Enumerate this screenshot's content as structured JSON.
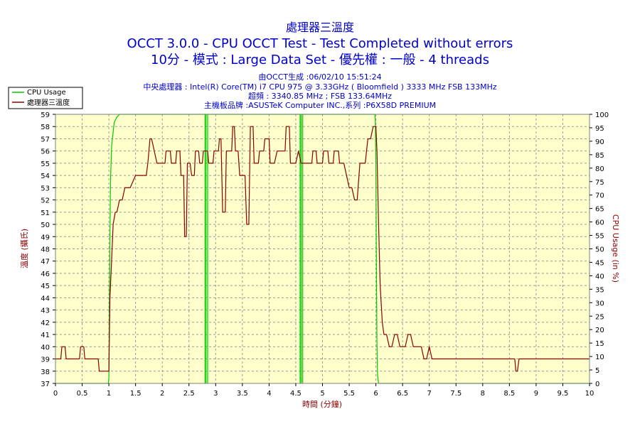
{
  "header": {
    "title": "處理器三溫度",
    "subtitle1": "OCCT 3.0.0 - CPU OCCT Test - Test Completed without errors",
    "subtitle2": "10分 - 模式 : Large Data Set - 優先權 : 一般 - 4 threads",
    "info1": "由OCCT生成 :06/02/10 15:51:24",
    "info2": "中央處理器 : Intel(R) Core(TM) i7 CPU 975 @ 3.33GHz ( Bloomfield ) 3333 MHz FSB 133MHz",
    "info3": "超頻 : 3340.85 MHz ; FSB 133.64MHz",
    "info4": "主機板品牌 :ASUSTeK Computer INC.,系列 :P6X58D PREMIUM"
  },
  "colors": {
    "plot_bg": "#ffffcc",
    "grid": "#999999",
    "temp_line": "#8b0000",
    "cpu_line": "#00cc00",
    "axis_label": "#8b0000",
    "title": "#0000cc"
  },
  "chart_data": {
    "type": "line",
    "xlabel": "時間 (分鐘)",
    "ylabel": "溫度 (攝氏)",
    "y2label": "CPU Usage (in %)",
    "xlim": [
      0,
      10
    ],
    "ylim": [
      37,
      59
    ],
    "y2lim": [
      0,
      100
    ],
    "x_ticks": [
      "0",
      "0.5",
      "1",
      "1.5",
      "2",
      "2.5",
      "3",
      "3.5",
      "4",
      "4.5",
      "5",
      "5.5",
      "6",
      "6.5",
      "7",
      "7.5",
      "8",
      "8.5",
      "9",
      "9.5",
      "10"
    ],
    "y_ticks": [
      "37",
      "38",
      "39",
      "40",
      "41",
      "42",
      "43",
      "44",
      "45",
      "46",
      "47",
      "48",
      "49",
      "50",
      "51",
      "52",
      "53",
      "54",
      "55",
      "56",
      "57",
      "58",
      "59"
    ],
    "y2_ticks": [
      "0",
      "5",
      "10",
      "15",
      "20",
      "25",
      "30",
      "35",
      "40",
      "45",
      "50",
      "55",
      "60",
      "65",
      "70",
      "75",
      "80",
      "85",
      "90",
      "95",
      "100"
    ],
    "grid": true,
    "legend_position": "top-left",
    "series": [
      {
        "name": "CPU Usage",
        "axis": "right",
        "color": "#00cc00",
        "x": [
          0,
          0.99,
          1.0,
          1.01,
          1.02,
          1.03,
          1.05,
          1.1,
          1.15,
          1.2,
          1.3,
          1.5,
          2.8,
          2.8,
          2.8,
          2.82,
          2.82,
          2.82,
          2.85,
          2.85,
          2.85,
          2.87,
          2.87,
          4.58,
          4.58,
          4.58,
          4.6,
          4.6,
          4.6,
          4.63,
          4.63,
          4.63,
          4.65,
          4.65,
          5.98,
          5.99,
          6.0,
          6.01,
          6.02,
          6.03,
          6.05,
          10
        ],
        "y": [
          0,
          0,
          2,
          30,
          55,
          75,
          88,
          97,
          99,
          100,
          100,
          100,
          100,
          0,
          100,
          100,
          0,
          100,
          100,
          0,
          100,
          100,
          100,
          100,
          0,
          100,
          100,
          0,
          100,
          100,
          0,
          100,
          100,
          100,
          100,
          98,
          80,
          40,
          15,
          3,
          0,
          0
        ]
      },
      {
        "name": "處理器三溫度",
        "axis": "left",
        "color": "#8b0000",
        "x": [
          0,
          0.1,
          0.12,
          0.18,
          0.2,
          0.45,
          0.47,
          0.53,
          0.55,
          0.8,
          0.82,
          1.0,
          1.02,
          1.05,
          1.08,
          1.12,
          1.15,
          1.2,
          1.25,
          1.3,
          1.35,
          1.4,
          1.5,
          1.6,
          1.7,
          1.73,
          1.77,
          1.8,
          1.9,
          2.05,
          2.07,
          2.15,
          2.17,
          2.25,
          2.27,
          2.33,
          2.35,
          2.4,
          2.42,
          2.45,
          2.47,
          2.52,
          2.55,
          2.6,
          2.62,
          2.68,
          2.7,
          2.75,
          2.77,
          2.85,
          2.87,
          2.95,
          2.97,
          3.05,
          3.07,
          3.1,
          3.13,
          3.18,
          3.2,
          3.3,
          3.32,
          3.35,
          3.37,
          3.42,
          3.45,
          3.55,
          3.58,
          3.62,
          3.65,
          3.7,
          3.72,
          3.8,
          3.82,
          3.9,
          3.92,
          4.0,
          4.02,
          4.1,
          4.15,
          4.3,
          4.32,
          4.38,
          4.4,
          4.45,
          4.5,
          4.55,
          4.6,
          4.8,
          4.82,
          4.88,
          4.9,
          5.0,
          5.02,
          5.1,
          5.12,
          5.2,
          5.22,
          5.3,
          5.32,
          5.4,
          5.5,
          5.55,
          5.6,
          5.65,
          5.7,
          5.8,
          5.85,
          5.9,
          5.95,
          6.0,
          6.02,
          6.05,
          6.08,
          6.12,
          6.15,
          6.2,
          6.25,
          6.3,
          6.35,
          6.4,
          6.45,
          6.55,
          6.6,
          6.65,
          6.7,
          6.85,
          6.9,
          6.95,
          7.0,
          7.05,
          8.15,
          8.2,
          8.25,
          8.6,
          8.62,
          8.65,
          8.68,
          8.7,
          10
        ],
        "y": [
          39,
          39,
          40,
          40,
          39,
          39,
          40,
          40,
          39,
          39,
          38,
          38,
          44,
          47,
          50,
          51,
          51,
          52,
          52,
          53,
          53,
          53,
          54,
          54,
          54,
          55,
          57,
          57,
          55,
          55,
          56,
          56,
          55,
          55,
          56,
          56,
          54,
          54,
          49,
          49,
          55,
          55,
          54,
          54,
          56,
          56,
          55,
          55,
          56,
          56,
          55,
          55,
          56,
          56,
          57,
          57,
          51,
          51,
          56,
          56,
          58,
          58,
          56,
          56,
          54,
          54,
          50,
          50,
          58,
          58,
          55,
          55,
          56,
          56,
          57,
          57,
          55,
          55,
          56,
          56,
          58,
          58,
          55,
          55,
          55,
          56,
          55,
          55,
          56,
          56,
          55,
          55,
          56,
          56,
          55,
          55,
          56,
          56,
          55,
          55,
          53,
          53,
          52,
          52,
          55,
          55,
          57,
          57,
          58,
          58,
          56,
          50,
          45,
          42,
          41,
          41,
          40,
          40,
          41,
          41,
          40,
          40,
          41,
          41,
          40,
          40,
          39,
          39,
          40,
          39,
          39,
          39,
          39,
          39,
          38,
          38,
          39,
          39,
          39
        ]
      }
    ]
  }
}
